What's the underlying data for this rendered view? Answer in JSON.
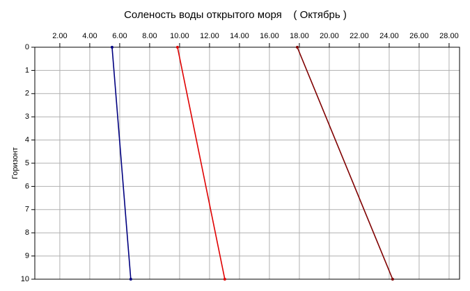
{
  "chart_data": {
    "type": "line",
    "title": "Соленость воды открытого моря    ( Октябрь )",
    "y_label": "Горизонт",
    "xlim": [
      0.33,
      28.7
    ],
    "xticks": [
      {
        "value": 2,
        "label": "2.00"
      },
      {
        "value": 4,
        "label": "4.00"
      },
      {
        "value": 6,
        "label": "6.00"
      },
      {
        "value": 8,
        "label": "8.00"
      },
      {
        "value": 10,
        "label": "10.00"
      },
      {
        "value": 12,
        "label": "12.00"
      },
      {
        "value": 14,
        "label": "14.00"
      },
      {
        "value": 16,
        "label": "16.00"
      },
      {
        "value": 18,
        "label": "18.00"
      },
      {
        "value": 20,
        "label": "20.00"
      },
      {
        "value": 22,
        "label": "22.00"
      },
      {
        "value": 24,
        "label": "24.00"
      },
      {
        "value": 26,
        "label": "26.00"
      },
      {
        "value": 28,
        "label": "28.00"
      }
    ],
    "ylim": [
      0,
      10
    ],
    "yticks": [
      0,
      1,
      2,
      3,
      4,
      5,
      6,
      7,
      8,
      9,
      10
    ],
    "y_inverted": true,
    "grid": true,
    "series": [
      {
        "color": "#000080",
        "x": [
          5.49,
          6.74
        ],
        "values": [
          0,
          10
        ]
      },
      {
        "color": "#e00000",
        "x": [
          9.86,
          13.02
        ],
        "values": [
          0,
          10
        ]
      },
      {
        "color": "#800000",
        "x": [
          17.86,
          24.23
        ],
        "values": [
          0,
          10
        ]
      }
    ]
  }
}
